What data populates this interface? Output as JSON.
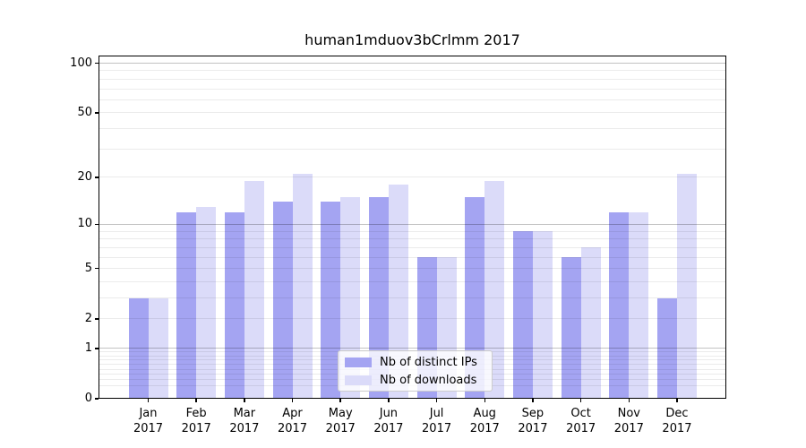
{
  "title": "human1mduov3bCrlmm 2017",
  "chart_data": {
    "type": "bar",
    "title": "human1mduov3bCrlmm 2017",
    "yscale": "log10(1+y)",
    "categories": [
      "Jan",
      "Feb",
      "Mar",
      "Apr",
      "May",
      "Jun",
      "Jul",
      "Aug",
      "Sep",
      "Oct",
      "Nov",
      "Dec"
    ],
    "x_year_sublabel": "2017",
    "series": [
      {
        "name": "Nb of distinct IPs",
        "color": "#a4a4f2",
        "values": [
          3,
          12,
          12,
          14,
          14,
          15,
          6,
          15,
          9,
          6,
          12,
          3
        ]
      },
      {
        "name": "Nb of downloads",
        "color": "#dbdbf9",
        "values": [
          3,
          13,
          19,
          21,
          15,
          18,
          6,
          19,
          9,
          7,
          12,
          21
        ]
      }
    ],
    "yticks": [
      0,
      1,
      2,
      5,
      10,
      20,
      50,
      100
    ],
    "ytick_labels": [
      "0",
      "1",
      "2",
      "5",
      "10",
      "20",
      "50",
      "100"
    ],
    "major_gridlines": [
      1,
      10,
      100
    ],
    "minor_gridlines": [
      0.2,
      0.3,
      0.4,
      0.5,
      0.6,
      0.7,
      0.8,
      0.9,
      2,
      3,
      4,
      5,
      6,
      7,
      8,
      9,
      20,
      30,
      40,
      50,
      60,
      70,
      80,
      90
    ],
    "ylim": [
      0,
      110
    ],
    "grid": true,
    "legend_position": "lower center"
  },
  "colors": {
    "background": "#ffffff",
    "bar_distinct_ips": "#a4a4f2",
    "bar_downloads": "#dbdbf9",
    "major_grid": "rgba(0,0,0,0.24)",
    "minor_grid": "rgba(0,0,0,0.08)",
    "spine": "#000000",
    "text": "#000000",
    "legend_border": "#cccccc",
    "legend_background": "rgba(255,255,255,0.8)"
  }
}
